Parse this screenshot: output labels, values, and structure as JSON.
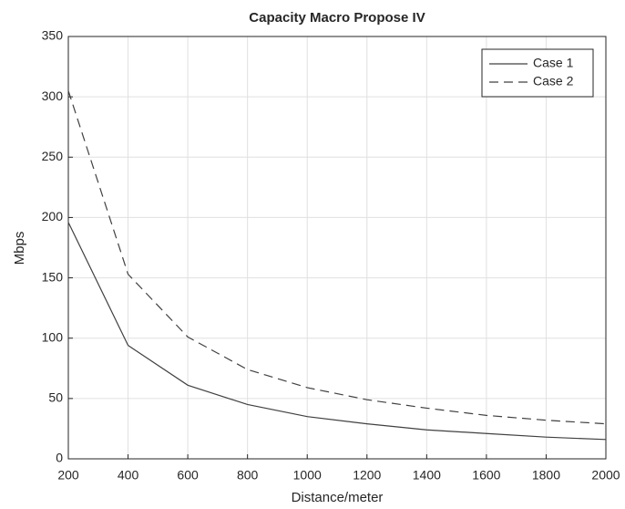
{
  "chart_data": {
    "type": "line",
    "title": "Capacity Macro Propose IV",
    "x_label": "Distance/meter",
    "y_label": "Mbps",
    "x": [
      200,
      400,
      600,
      800,
      1000,
      1200,
      1400,
      1600,
      1800,
      2000
    ],
    "series": [
      {
        "name": "Case 1",
        "color": "#404040",
        "dash": "solid",
        "values": [
          196,
          94,
          61,
          45,
          35,
          29,
          24,
          21,
          18,
          16
        ]
      },
      {
        "name": "Case 2",
        "color": "#404040",
        "dash": "dashed",
        "values": [
          305,
          153,
          101,
          74,
          59,
          49,
          42,
          36,
          32,
          29
        ]
      }
    ],
    "xlim": [
      200,
      2000
    ],
    "xticks": [
      200,
      400,
      600,
      800,
      1000,
      1200,
      1400,
      1600,
      1800,
      2000
    ],
    "ylim": [
      0,
      350
    ],
    "yticks": [
      0,
      50,
      100,
      150,
      200,
      250,
      300,
      350
    ],
    "grid": true,
    "legend": "northeast"
  }
}
